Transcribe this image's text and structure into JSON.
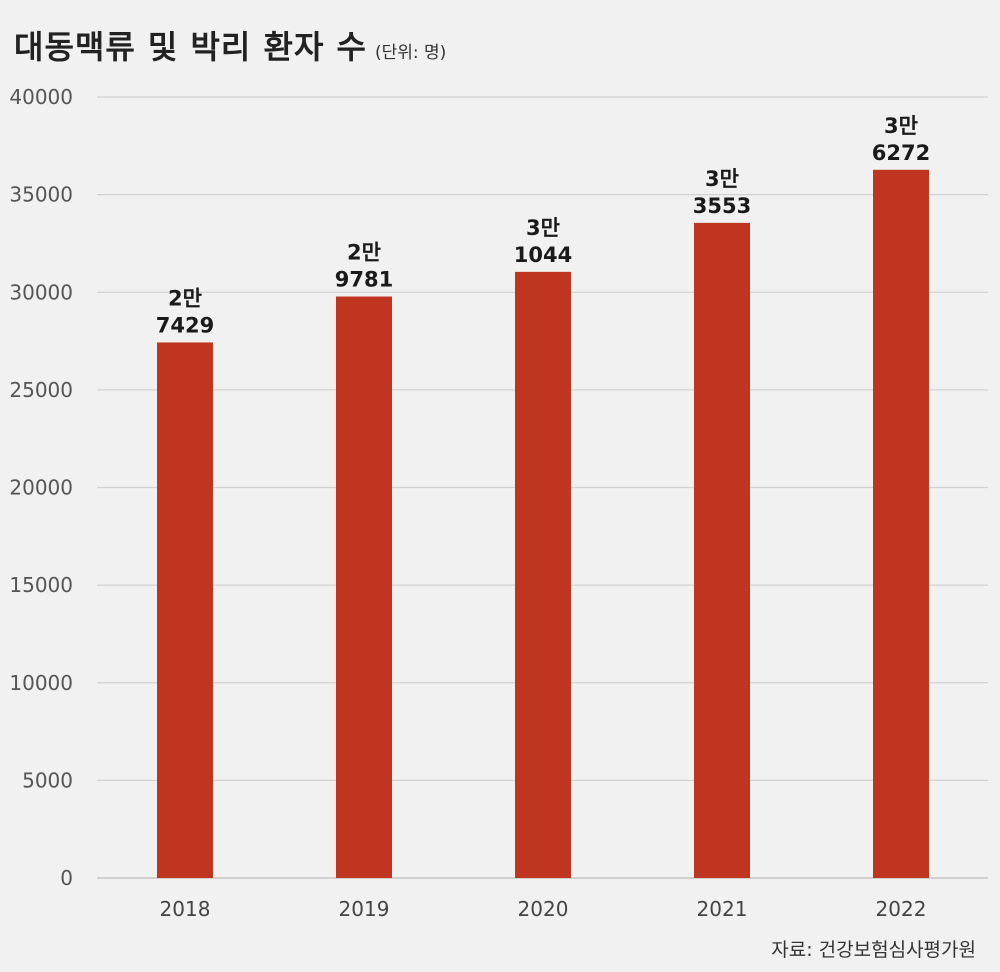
{
  "title": "대동맥류 및 박리 환자 수",
  "unit": "(단위: 명)",
  "source": "자료: 건강보험심사평가원",
  "colors": {
    "bar": "#bf351f",
    "grid": "#d2d2d2",
    "baseline": "#bdbdbd"
  },
  "chart_data": {
    "type": "bar",
    "categories": [
      "2018",
      "2019",
      "2020",
      "2021",
      "2022"
    ],
    "values": [
      27429,
      29781,
      31044,
      33553,
      36272
    ],
    "data_labels": [
      [
        "2만",
        "7429"
      ],
      [
        "2만",
        "9781"
      ],
      [
        "3만",
        "1044"
      ],
      [
        "3만",
        "3553"
      ],
      [
        "3만",
        "6272"
      ]
    ],
    "yticks": [
      0,
      5000,
      10000,
      15000,
      20000,
      25000,
      30000,
      35000,
      40000
    ],
    "ylim": [
      0,
      40000
    ],
    "grid": true
  }
}
